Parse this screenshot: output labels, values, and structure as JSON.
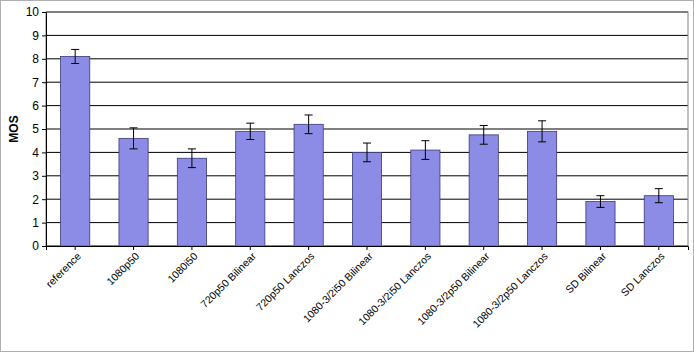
{
  "chart_data": {
    "type": "bar",
    "y_label": "MOS",
    "categories": [
      "reference",
      "1080p50",
      "1080i50",
      "720p50 Bilinear",
      "720p50 Lanczos",
      "1080-3/2i50 Bilinear",
      "1080-3/2i50 Lanczos",
      "1080-3/2p50 Bilinear",
      "1080-3/2p50 Lanczos",
      "SD Bilinear",
      "SD Lanczos"
    ],
    "values": [
      8.1,
      4.6,
      3.75,
      4.9,
      5.2,
      4.0,
      4.1,
      4.75,
      4.9,
      1.9,
      2.15
    ],
    "errors": [
      0.3,
      0.45,
      0.4,
      0.35,
      0.4,
      0.4,
      0.4,
      0.4,
      0.45,
      0.25,
      0.3
    ],
    "color": "#8c8ce6",
    "ylim": [
      0,
      10
    ],
    "yticks": [
      0,
      1,
      2,
      3,
      4,
      5,
      6,
      7,
      8,
      9,
      10
    ],
    "grid": true
  }
}
